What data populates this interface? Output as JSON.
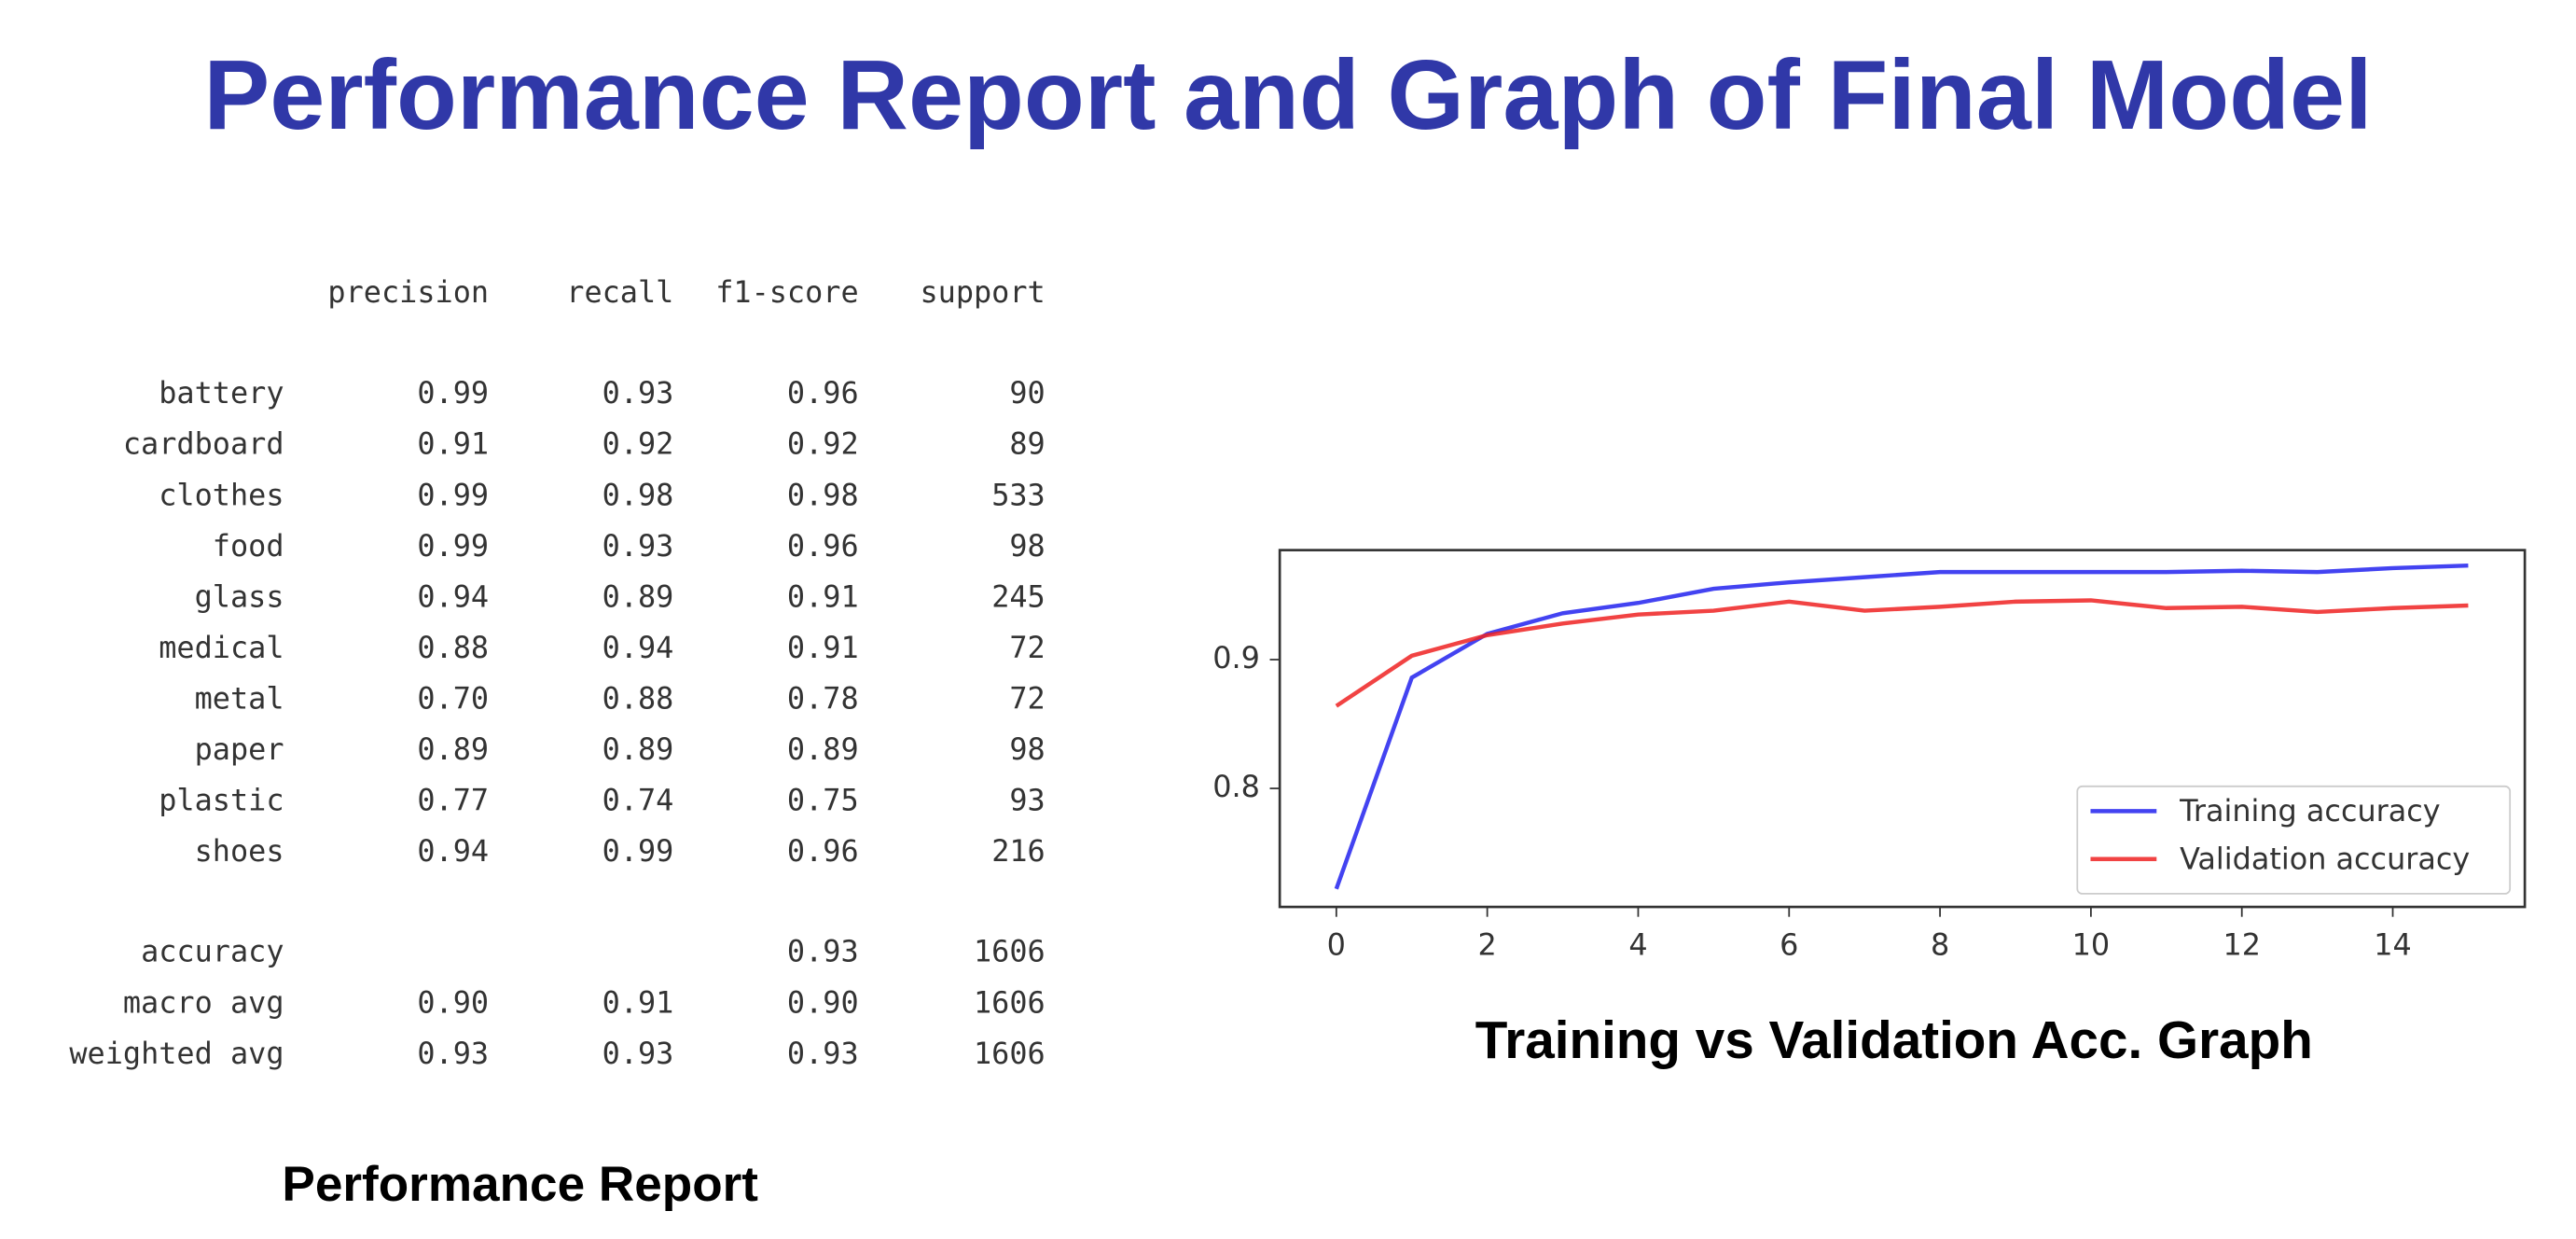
{
  "title": "Performance Report and Graph of Final Model",
  "report": {
    "columns": [
      "precision",
      "recall",
      "f1-score",
      "support"
    ],
    "classes": [
      [
        "battery",
        "0.99",
        "0.93",
        "0.96",
        "90"
      ],
      [
        "cardboard",
        "0.91",
        "0.92",
        "0.92",
        "89"
      ],
      [
        "clothes",
        "0.99",
        "0.98",
        "0.98",
        "533"
      ],
      [
        "food",
        "0.99",
        "0.93",
        "0.96",
        "98"
      ],
      [
        "glass",
        "0.94",
        "0.89",
        "0.91",
        "245"
      ],
      [
        "medical",
        "0.88",
        "0.94",
        "0.91",
        "72"
      ],
      [
        "metal",
        "0.70",
        "0.88",
        "0.78",
        "72"
      ],
      [
        "paper",
        "0.89",
        "0.89",
        "0.89",
        "98"
      ],
      [
        "plastic",
        "0.77",
        "0.74",
        "0.75",
        "93"
      ],
      [
        "shoes",
        "0.94",
        "0.99",
        "0.96",
        "216"
      ]
    ],
    "accuracy": {
      "label": "accuracy",
      "f1-score": "0.93",
      "support": "1606"
    },
    "averages": [
      [
        "macro avg",
        "0.90",
        "0.91",
        "0.90",
        "1606"
      ],
      [
        "weighted avg",
        "0.93",
        "0.93",
        "0.93",
        "1606"
      ]
    ],
    "caption": "Performance Report"
  },
  "chart_data": {
    "type": "line",
    "caption": "Training vs Validation Acc. Graph",
    "x": [
      0,
      1,
      2,
      3,
      4,
      5,
      6,
      7,
      8,
      9,
      10,
      11,
      12,
      13,
      14,
      15
    ],
    "series": [
      {
        "name": "Training accuracy",
        "color": "#2222ee",
        "values": [
          0.722,
          0.886,
          0.92,
          0.936,
          0.944,
          0.955,
          0.96,
          0.964,
          0.968,
          0.968,
          0.968,
          0.968,
          0.969,
          0.968,
          0.971,
          0.973
        ]
      },
      {
        "name": "Validation accuracy",
        "color": "#ee2222",
        "values": [
          0.864,
          0.903,
          0.919,
          0.928,
          0.935,
          0.938,
          0.945,
          0.938,
          0.941,
          0.945,
          0.946,
          0.94,
          0.941,
          0.937,
          0.94,
          0.942
        ]
      }
    ],
    "xlim": [
      -0.75,
      15.75
    ],
    "ylim": [
      0.708,
      0.985
    ],
    "xticks": [
      0,
      2,
      4,
      6,
      8,
      10,
      12,
      14
    ],
    "yticks": [
      0.8,
      0.9
    ],
    "legend": "lower right",
    "grid": false
  }
}
